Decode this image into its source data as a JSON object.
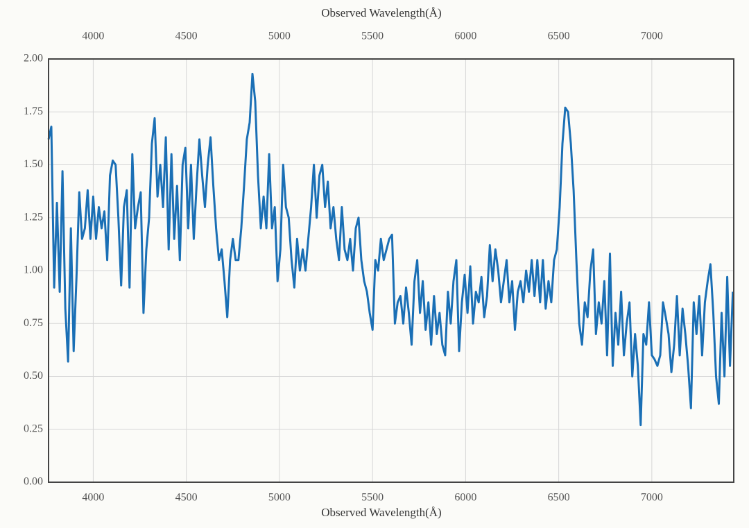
{
  "chart_data": {
    "type": "line",
    "xlabel": "Observed Wavelength(Å)",
    "color": "#1a6fb5",
    "grid": true,
    "xlim": [
      3760,
      7440
    ],
    "ylim": [
      0,
      2
    ],
    "xticks": [
      4000,
      4500,
      5000,
      5500,
      6000,
      6500,
      7000
    ],
    "yticks": [
      {
        "value": 0,
        "label": "0.00"
      },
      {
        "value": 0.25,
        "label": "0.25"
      },
      {
        "value": 0.5,
        "label": "0.50"
      },
      {
        "value": 0.75,
        "label": "0.75"
      },
      {
        "value": 1,
        "label": "1.00"
      },
      {
        "value": 1.25,
        "label": "1.25"
      },
      {
        "value": 1.5,
        "label": "1.50"
      },
      {
        "value": 1.75,
        "label": "1.75"
      },
      {
        "value": 2,
        "label": "2.00"
      }
    ],
    "x": [
      3760,
      3775,
      3790,
      3805,
      3820,
      3835,
      3850,
      3865,
      3880,
      3895,
      3910,
      3925,
      3940,
      3955,
      3970,
      3985,
      4000,
      4015,
      4030,
      4045,
      4060,
      4075,
      4090,
      4105,
      4120,
      4135,
      4150,
      4165,
      4180,
      4195,
      4210,
      4225,
      4240,
      4255,
      4270,
      4285,
      4300,
      4315,
      4330,
      4345,
      4360,
      4375,
      4390,
      4405,
      4420,
      4435,
      4450,
      4465,
      4480,
      4495,
      4510,
      4525,
      4540,
      4555,
      4570,
      4585,
      4600,
      4615,
      4630,
      4645,
      4660,
      4675,
      4690,
      4705,
      4720,
      4735,
      4750,
      4765,
      4780,
      4795,
      4810,
      4825,
      4840,
      4855,
      4870,
      4885,
      4900,
      4915,
      4930,
      4945,
      4960,
      4975,
      4990,
      5005,
      5020,
      5035,
      5050,
      5065,
      5080,
      5095,
      5110,
      5125,
      5140,
      5155,
      5170,
      5185,
      5200,
      5215,
      5230,
      5245,
      5260,
      5275,
      5290,
      5305,
      5320,
      5335,
      5350,
      5365,
      5380,
      5395,
      5410,
      5425,
      5440,
      5455,
      5470,
      5485,
      5500,
      5515,
      5530,
      5545,
      5560,
      5575,
      5590,
      5605,
      5620,
      5635,
      5650,
      5665,
      5680,
      5695,
      5710,
      5725,
      5740,
      5755,
      5770,
      5785,
      5800,
      5815,
      5830,
      5845,
      5860,
      5875,
      5890,
      5905,
      5920,
      5935,
      5950,
      5965,
      5980,
      5995,
      6010,
      6025,
      6040,
      6055,
      6070,
      6085,
      6100,
      6115,
      6130,
      6145,
      6160,
      6175,
      6190,
      6205,
      6220,
      6235,
      6250,
      6265,
      6280,
      6295,
      6310,
      6325,
      6340,
      6355,
      6370,
      6385,
      6400,
      6415,
      6430,
      6445,
      6460,
      6475,
      6490,
      6505,
      6520,
      6535,
      6550,
      6565,
      6580,
      6595,
      6610,
      6625,
      6640,
      6655,
      6670,
      6685,
      6700,
      6715,
      6730,
      6745,
      6760,
      6775,
      6790,
      6805,
      6820,
      6835,
      6850,
      6865,
      6880,
      6895,
      6910,
      6925,
      6940,
      6955,
      6970,
      6985,
      7000,
      7015,
      7030,
      7045,
      7060,
      7075,
      7090,
      7105,
      7120,
      7135,
      7150,
      7165,
      7180,
      7195,
      7210,
      7225,
      7240,
      7255,
      7270,
      7285,
      7300,
      7315,
      7330,
      7345,
      7360,
      7375,
      7390,
      7405,
      7420,
      7435
    ],
    "values": [
      1.62,
      1.68,
      0.92,
      1.32,
      0.9,
      1.47,
      0.82,
      0.57,
      1.2,
      0.62,
      0.97,
      1.37,
      1.15,
      1.2,
      1.38,
      1.15,
      1.35,
      1.15,
      1.3,
      1.2,
      1.28,
      1.05,
      1.45,
      1.52,
      1.5,
      1.25,
      0.93,
      1.3,
      1.38,
      0.92,
      1.55,
      1.2,
      1.3,
      1.37,
      0.8,
      1.1,
      1.25,
      1.6,
      1.72,
      1.35,
      1.5,
      1.3,
      1.63,
      1.1,
      1.55,
      1.15,
      1.4,
      1.05,
      1.5,
      1.58,
      1.2,
      1.5,
      1.15,
      1.4,
      1.62,
      1.45,
      1.3,
      1.5,
      1.63,
      1.4,
      1.2,
      1.05,
      1.1,
      0.95,
      0.78,
      1.05,
      1.15,
      1.05,
      1.05,
      1.2,
      1.4,
      1.62,
      1.7,
      1.93,
      1.8,
      1.45,
      1.2,
      1.35,
      1.2,
      1.55,
      1.2,
      1.3,
      0.95,
      1.1,
      1.5,
      1.3,
      1.25,
      1.05,
      0.92,
      1.15,
      1.0,
      1.1,
      1.0,
      1.15,
      1.3,
      1.5,
      1.25,
      1.45,
      1.5,
      1.3,
      1.42,
      1.2,
      1.3,
      1.15,
      1.05,
      1.3,
      1.1,
      1.05,
      1.15,
      1.0,
      1.2,
      1.25,
      1.05,
      0.95,
      0.9,
      0.8,
      0.72,
      1.05,
      1.0,
      1.15,
      1.05,
      1.1,
      1.15,
      1.17,
      0.75,
      0.85,
      0.88,
      0.75,
      0.92,
      0.8,
      0.65,
      0.95,
      1.05,
      0.8,
      0.95,
      0.72,
      0.85,
      0.65,
      0.88,
      0.7,
      0.8,
      0.65,
      0.6,
      0.9,
      0.75,
      0.95,
      1.05,
      0.62,
      0.85,
      0.98,
      0.8,
      1.02,
      0.75,
      0.9,
      0.85,
      0.97,
      0.78,
      0.88,
      1.12,
      0.95,
      1.1,
      1.0,
      0.85,
      0.95,
      1.05,
      0.85,
      0.95,
      0.72,
      0.9,
      0.95,
      0.85,
      1.0,
      0.9,
      1.05,
      0.88,
      1.05,
      0.85,
      1.05,
      0.82,
      0.95,
      0.85,
      1.05,
      1.1,
      1.3,
      1.6,
      1.77,
      1.75,
      1.6,
      1.38,
      1.05,
      0.75,
      0.65,
      0.85,
      0.78,
      1.0,
      1.1,
      0.7,
      0.85,
      0.75,
      0.95,
      0.6,
      1.08,
      0.55,
      0.8,
      0.65,
      0.9,
      0.6,
      0.75,
      0.85,
      0.5,
      0.7,
      0.55,
      0.27,
      0.7,
      0.65,
      0.85,
      0.6,
      0.58,
      0.55,
      0.6,
      0.85,
      0.78,
      0.7,
      0.52,
      0.65,
      0.88,
      0.6,
      0.82,
      0.7,
      0.55,
      0.35,
      0.85,
      0.7,
      0.88,
      0.6,
      0.85,
      0.95,
      1.03,
      0.8,
      0.5,
      0.37,
      0.8,
      0.5,
      0.97,
      0.55,
      0.9
    ]
  }
}
